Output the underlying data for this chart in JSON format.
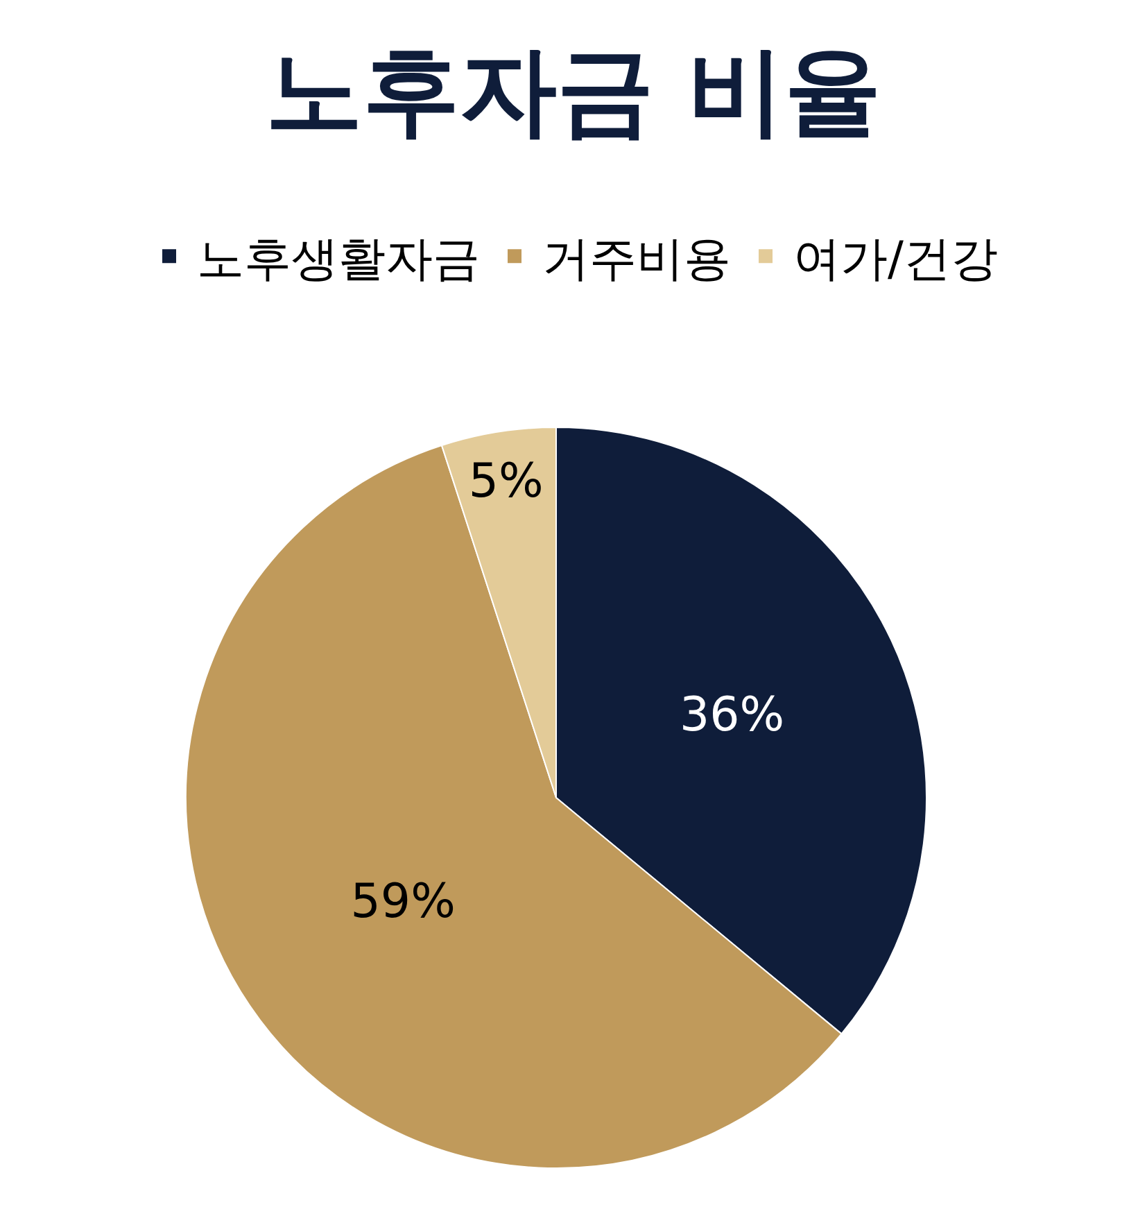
{
  "chart_data": {
    "type": "pie",
    "title": "노후자금 비율",
    "categories": [
      "노후생활자금",
      "거주비용",
      "여가/건강"
    ],
    "values": [
      36,
      59,
      5
    ],
    "colors": [
      "#0f1d3a",
      "#c09a5b",
      "#e3cb98"
    ],
    "value_labels": [
      "36%",
      "59%",
      "5%"
    ],
    "legend": "top"
  }
}
